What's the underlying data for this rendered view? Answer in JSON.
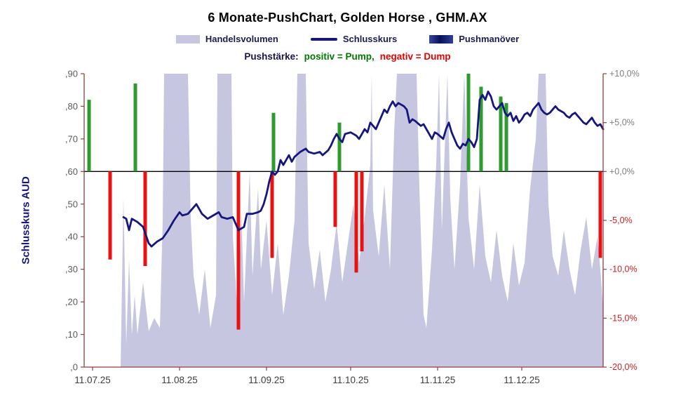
{
  "title": "6 Monate-PushChart, Golden Horse , GHM.AX",
  "legend": {
    "volume_label": "Handelsvolumen",
    "close_label": "Schlusskurs",
    "push_label": "Pushmanöver"
  },
  "subtitle": {
    "prefix": "Pushstärke:",
    "pump": "positiv = Pump,",
    "dump": "negativ = Dump"
  },
  "colors": {
    "volume": "#c6c6e0",
    "close": "#16167e",
    "pump": "#2e9b2e",
    "dump": "#e81212",
    "axis": "#8f3f3f",
    "zero_line": "#000000",
    "tick_gray": "#5a5a5a",
    "pct_positive": "#7f7f7f",
    "pct_negative": "#cc2222",
    "x_label": "#3c3c3c"
  },
  "chart_data": {
    "type": "composite: area (Handelsvolumen) + line (Schlusskurs) + bar (Pushmanöver pump/dump)",
    "title": "6 Monate-PushChart, Golden Horse , GHM.AX",
    "legend_position": "top",
    "grid": false,
    "left_axis": {
      "title": "Schlusskurs AUD",
      "ticks": [
        ",90",
        ",80",
        ",70",
        ",60",
        ",50",
        ",40",
        ",30",
        ",20",
        ",10",
        ",0"
      ],
      "values": [
        0.9,
        0.8,
        0.7,
        0.6,
        0.5,
        0.4,
        0.3,
        0.2,
        0.1,
        0
      ],
      "range": [
        0,
        0.9
      ]
    },
    "right_axis": {
      "ticks": [
        "+10,0%",
        "+5,0%",
        "+0,0%",
        "-5,0%",
        "-10,0%",
        "-15,0%",
        "-20,0%"
      ],
      "values": [
        10,
        5,
        0,
        -5,
        -10,
        -15,
        -20
      ],
      "range": [
        -20,
        10
      ],
      "aud_per_pct": 0.03
    },
    "x_axis": {
      "ticks": [
        "11.07.25",
        "11.08.25",
        "11.09.25",
        "11.10.25",
        "11.11.25",
        "11.12.25"
      ],
      "tick_days": [
        0,
        31,
        62,
        92,
        123,
        153
      ],
      "domain_days": [
        -3,
        182
      ]
    },
    "push_baseline": 0.6,
    "volume_units": "relative (unlabeled axis, scaled to plot height, clipped at top)",
    "volume_points": [
      [
        10,
        0
      ],
      [
        11,
        0.52
      ],
      [
        12,
        0.07
      ],
      [
        13,
        0.33
      ],
      [
        14,
        0.1
      ],
      [
        15,
        0.22
      ],
      [
        16,
        0.1
      ],
      [
        18,
        0.26
      ],
      [
        20,
        0.11
      ],
      [
        22,
        0.15
      ],
      [
        24,
        0.12
      ],
      [
        25,
        0.45
      ],
      [
        25.5,
        0.9
      ],
      [
        34,
        0.9
      ],
      [
        35,
        0.45
      ],
      [
        36,
        0.28
      ],
      [
        38,
        0.16
      ],
      [
        40,
        0.3
      ],
      [
        42,
        0.12
      ],
      [
        44,
        0.22
      ],
      [
        44.5,
        0.9
      ],
      [
        49.5,
        0.9
      ],
      [
        50,
        0.4
      ],
      [
        52,
        0.12
      ],
      [
        53,
        0.48
      ],
      [
        54,
        0.2
      ],
      [
        56,
        0.6
      ],
      [
        57,
        0.28
      ],
      [
        59,
        0.55
      ],
      [
        60,
        0.3
      ],
      [
        62,
        0.45
      ],
      [
        64,
        0.22
      ],
      [
        66,
        0.38
      ],
      [
        68,
        0.16
      ],
      [
        70,
        0.28
      ],
      [
        72,
        0.45
      ],
      [
        73,
        0.9
      ],
      [
        76,
        0.9
      ],
      [
        77,
        0.38
      ],
      [
        79,
        0.24
      ],
      [
        81,
        0.36
      ],
      [
        83,
        0.2
      ],
      [
        85,
        0.3
      ],
      [
        87,
        0.44
      ],
      [
        89,
        0.26
      ],
      [
        91,
        0.38
      ],
      [
        93,
        0.5
      ],
      [
        95,
        0.32
      ],
      [
        97,
        0.46
      ],
      [
        99,
        0.62
      ],
      [
        99.5,
        0.9
      ],
      [
        100,
        0.48
      ],
      [
        102,
        0.34
      ],
      [
        104,
        0.56
      ],
      [
        106,
        0.3
      ],
      [
        107.5,
        0.72
      ],
      [
        108.5,
        0.9
      ],
      [
        115.5,
        0.9
      ],
      [
        116.5,
        0.55
      ],
      [
        118,
        0.16
      ],
      [
        119,
        0.12
      ],
      [
        121,
        0.36
      ],
      [
        122.5,
        0.62
      ],
      [
        123.5,
        0.9
      ],
      [
        124.5,
        0.42
      ],
      [
        126.5,
        0.9
      ],
      [
        127.5,
        0.52
      ],
      [
        129,
        0.3
      ],
      [
        131,
        0.56
      ],
      [
        132.5,
        0.9
      ],
      [
        134,
        0.46
      ],
      [
        136,
        0.3
      ],
      [
        138,
        0.56
      ],
      [
        140,
        0.34
      ],
      [
        142,
        0.26
      ],
      [
        144,
        0.42
      ],
      [
        146,
        0.28
      ],
      [
        148,
        0.2
      ],
      [
        150,
        0.38
      ],
      [
        152,
        0.25
      ],
      [
        154,
        0.32
      ],
      [
        156,
        0.55
      ],
      [
        158,
        0.7
      ],
      [
        159,
        0.9
      ],
      [
        161.5,
        0.9
      ],
      [
        162.5,
        0.5
      ],
      [
        164,
        0.34
      ],
      [
        166,
        0.28
      ],
      [
        168,
        0.42
      ],
      [
        170,
        0.3
      ],
      [
        172,
        0.22
      ],
      [
        174,
        0.36
      ],
      [
        176,
        0.46
      ],
      [
        178,
        0.3
      ],
      [
        180,
        0.4
      ],
      [
        181,
        0.3
      ],
      [
        182,
        0.18
      ]
    ],
    "close_points": [
      [
        11,
        0.46
      ],
      [
        12,
        0.455
      ],
      [
        13,
        0.42
      ],
      [
        14,
        0.455
      ],
      [
        16,
        0.445
      ],
      [
        18,
        0.43
      ],
      [
        20,
        0.38
      ],
      [
        21,
        0.37
      ],
      [
        23,
        0.385
      ],
      [
        25,
        0.395
      ],
      [
        27,
        0.42
      ],
      [
        29,
        0.45
      ],
      [
        31,
        0.475
      ],
      [
        32,
        0.465
      ],
      [
        34,
        0.47
      ],
      [
        36,
        0.49
      ],
      [
        37,
        0.5
      ],
      [
        39,
        0.47
      ],
      [
        41,
        0.455
      ],
      [
        43,
        0.465
      ],
      [
        45,
        0.475
      ],
      [
        46,
        0.46
      ],
      [
        48,
        0.455
      ],
      [
        50,
        0.46
      ],
      [
        52,
        0.42
      ],
      [
        54,
        0.43
      ],
      [
        55,
        0.47
      ],
      [
        57,
        0.47
      ],
      [
        59,
        0.475
      ],
      [
        60,
        0.48
      ],
      [
        61,
        0.5
      ],
      [
        62,
        0.53
      ],
      [
        63,
        0.57
      ],
      [
        64,
        0.6
      ],
      [
        65,
        0.59
      ],
      [
        66,
        0.6
      ],
      [
        67,
        0.635
      ],
      [
        68,
        0.62
      ],
      [
        69,
        0.635
      ],
      [
        70,
        0.65
      ],
      [
        71,
        0.63
      ],
      [
        72,
        0.645
      ],
      [
        74,
        0.66
      ],
      [
        76,
        0.67
      ],
      [
        77,
        0.66
      ],
      [
        79,
        0.655
      ],
      [
        81,
        0.66
      ],
      [
        82,
        0.65
      ],
      [
        84,
        0.665
      ],
      [
        85,
        0.68
      ],
      [
        86,
        0.7
      ],
      [
        87,
        0.715
      ],
      [
        88,
        0.7
      ],
      [
        89,
        0.69
      ],
      [
        90,
        0.715
      ],
      [
        92,
        0.72
      ],
      [
        94,
        0.71
      ],
      [
        95,
        0.7
      ],
      [
        97,
        0.73
      ],
      [
        98,
        0.72
      ],
      [
        99,
        0.75
      ],
      [
        100,
        0.74
      ],
      [
        101,
        0.73
      ],
      [
        103,
        0.77
      ],
      [
        104,
        0.79
      ],
      [
        105,
        0.78
      ],
      [
        106,
        0.8
      ],
      [
        107,
        0.815
      ],
      [
        108,
        0.8
      ],
      [
        109,
        0.81
      ],
      [
        111,
        0.8
      ],
      [
        112,
        0.79
      ],
      [
        113,
        0.75
      ],
      [
        114,
        0.76
      ],
      [
        115,
        0.755
      ],
      [
        117,
        0.74
      ],
      [
        118,
        0.745
      ],
      [
        119,
        0.73
      ],
      [
        120,
        0.715
      ],
      [
        121,
        0.7
      ],
      [
        122,
        0.72
      ],
      [
        123,
        0.715
      ],
      [
        125,
        0.7
      ],
      [
        126,
        0.73
      ],
      [
        127,
        0.75
      ],
      [
        128,
        0.72
      ],
      [
        129,
        0.7
      ],
      [
        130,
        0.68
      ],
      [
        131,
        0.67
      ],
      [
        132,
        0.685
      ],
      [
        133,
        0.68
      ],
      [
        134,
        0.7
      ],
      [
        135,
        0.69
      ],
      [
        136,
        0.675
      ],
      [
        137,
        0.7
      ],
      [
        138,
        0.82
      ],
      [
        139,
        0.835
      ],
      [
        140,
        0.82
      ],
      [
        141,
        0.845
      ],
      [
        142,
        0.83
      ],
      [
        143,
        0.8
      ],
      [
        144,
        0.79
      ],
      [
        145,
        0.8
      ],
      [
        146,
        0.81
      ],
      [
        147,
        0.78
      ],
      [
        148,
        0.77
      ],
      [
        149,
        0.78
      ],
      [
        150,
        0.755
      ],
      [
        151,
        0.77
      ],
      [
        152,
        0.75
      ],
      [
        153,
        0.76
      ],
      [
        154,
        0.775
      ],
      [
        155,
        0.78
      ],
      [
        156,
        0.77
      ],
      [
        157,
        0.79
      ],
      [
        158,
        0.8
      ],
      [
        159,
        0.81
      ],
      [
        160,
        0.79
      ],
      [
        161,
        0.78
      ],
      [
        162,
        0.775
      ],
      [
        163,
        0.78
      ],
      [
        164,
        0.79
      ],
      [
        165,
        0.8
      ],
      [
        166,
        0.79
      ],
      [
        167,
        0.785
      ],
      [
        168,
        0.78
      ],
      [
        169,
        0.77
      ],
      [
        170,
        0.765
      ],
      [
        171,
        0.775
      ],
      [
        172,
        0.78
      ],
      [
        173,
        0.77
      ],
      [
        174,
        0.76
      ],
      [
        175,
        0.75
      ],
      [
        176,
        0.745
      ],
      [
        177,
        0.755
      ],
      [
        178,
        0.765
      ],
      [
        179,
        0.75
      ],
      [
        180,
        0.74
      ],
      [
        181,
        0.745
      ],
      [
        182,
        0.73
      ]
    ],
    "pump_bars": [
      [
        -1.25,
        0.82
      ],
      [
        15.25,
        0.87
      ],
      [
        64.5,
        0.78
      ],
      [
        88,
        0.75
      ],
      [
        134,
        0.9
      ],
      [
        138.5,
        0.86
      ],
      [
        145.5,
        0.83
      ],
      [
        147.5,
        0.81
      ]
    ],
    "dump_bars": [
      [
        6.25,
        0.33
      ],
      [
        18.75,
        0.31
      ],
      [
        52,
        0.115
      ],
      [
        64,
        0.335
      ],
      [
        86.5,
        0.43
      ],
      [
        94,
        0.29
      ],
      [
        96,
        0.355
      ],
      [
        181,
        0.335
      ]
    ]
  }
}
